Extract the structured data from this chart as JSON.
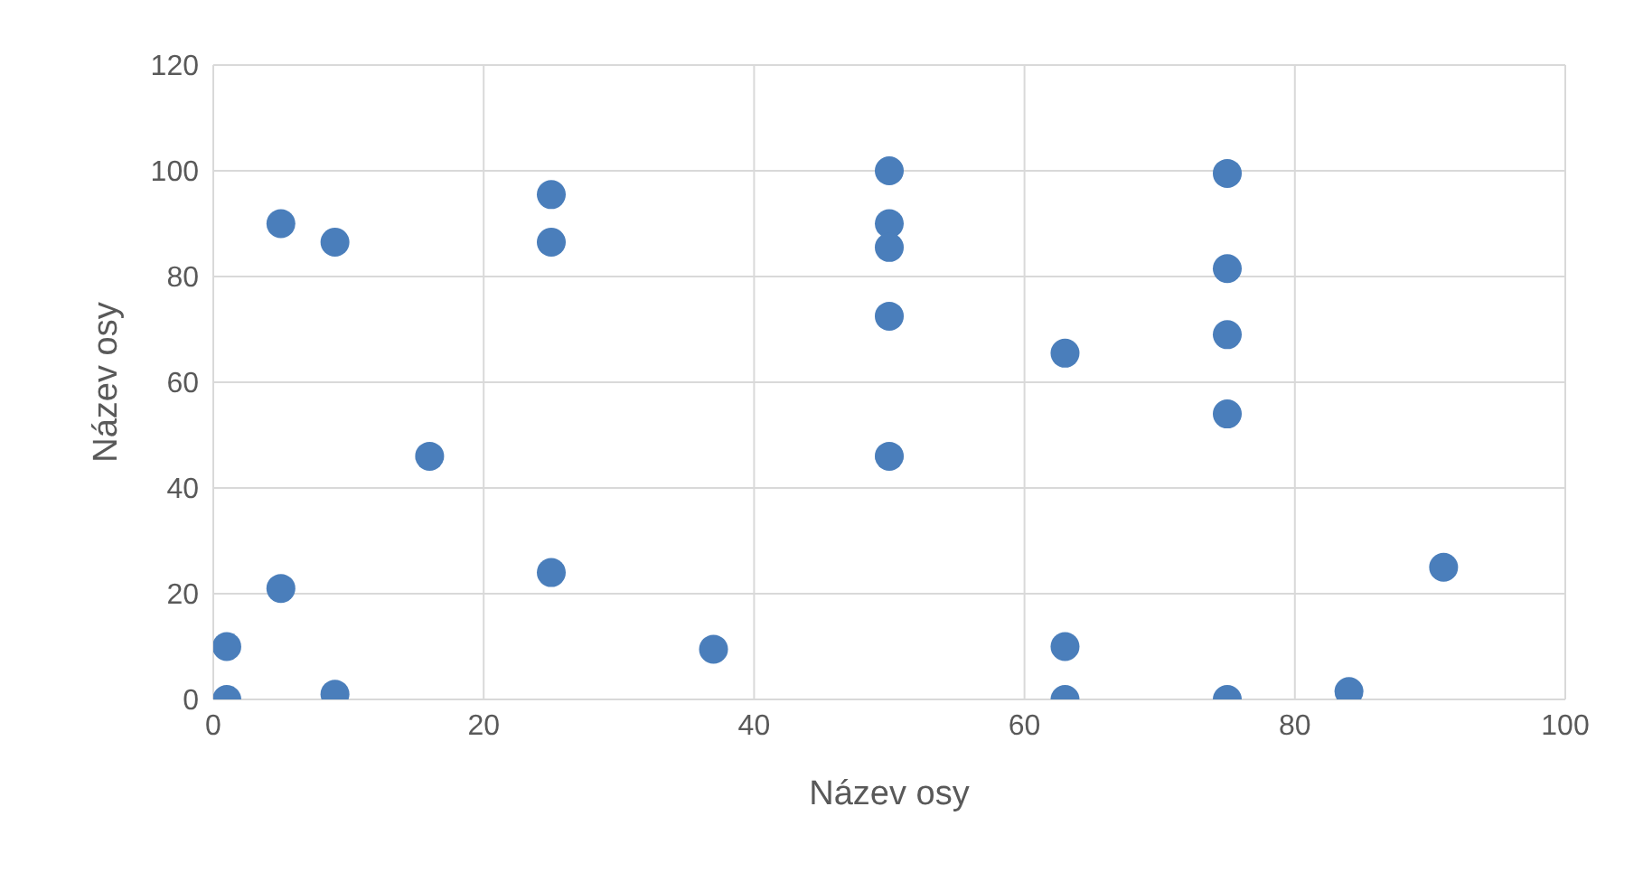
{
  "chart_data": {
    "type": "scatter",
    "xlabel": "Název osy",
    "ylabel": "Název osy",
    "xlim": [
      0,
      100
    ],
    "xticks": [
      0,
      20,
      40,
      60,
      80,
      100
    ],
    "ylim": [
      0,
      120
    ],
    "yticks": [
      0,
      20,
      40,
      60,
      80,
      100,
      120
    ],
    "grid": true,
    "marker": "circle",
    "series": [
      {
        "color": "#4a7ebb",
        "x": [
          1,
          1,
          5,
          5,
          9,
          9,
          16,
          25,
          25,
          25,
          37,
          50,
          50,
          50,
          50,
          50,
          63,
          63,
          63,
          75,
          75,
          75,
          75,
          75,
          84,
          91
        ],
        "values": [
          10,
          0,
          90,
          21,
          86.5,
          1,
          46,
          95.5,
          86.5,
          24,
          9.5,
          100,
          90,
          85.5,
          72.5,
          46,
          65.5,
          10,
          0,
          99.5,
          81.5,
          69,
          54,
          0,
          1.5,
          25
        ]
      }
    ]
  }
}
